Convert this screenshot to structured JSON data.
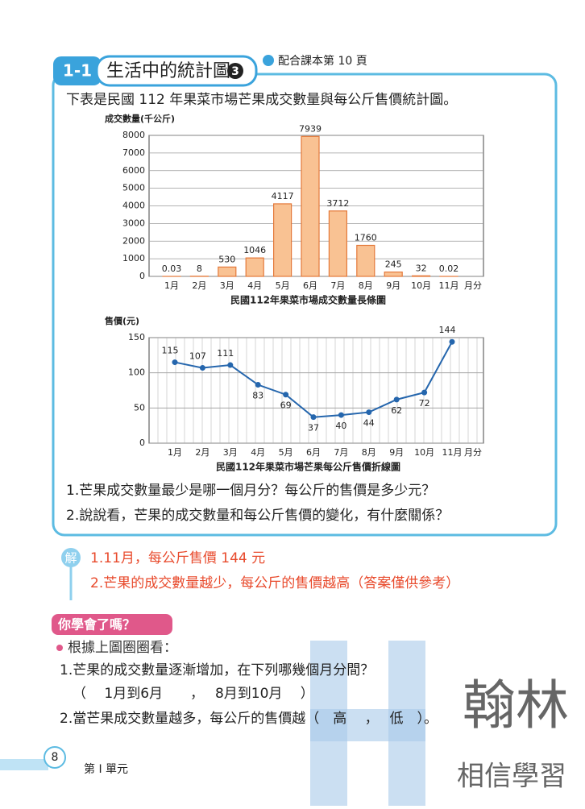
{
  "header": {
    "badge": "1-1",
    "title": "生活中的統計圖",
    "number": "3",
    "reference": "配合課本第 10 頁"
  },
  "intro": "下表是民國 112 年果菜市場芒果成交數量與每公斤售價統計圖。",
  "chart_data": [
    {
      "type": "bar",
      "title": "民國112年果菜市場成交數量長條圖",
      "y_label": "成交數量(千公斤)",
      "x_label": "月分",
      "categories": [
        "1月",
        "2月",
        "3月",
        "4月",
        "5月",
        "6月",
        "7月",
        "8月",
        "9月",
        "10月",
        "11月"
      ],
      "values": [
        0.03,
        8,
        530,
        1046,
        4117,
        7939,
        3712,
        1760,
        245,
        32,
        0.02
      ],
      "color": "#f9c293",
      "ylim": [
        0,
        8000
      ],
      "yticks": [
        0,
        1000,
        2000,
        3000,
        4000,
        5000,
        6000,
        7000,
        8000
      ],
      "grid": true
    },
    {
      "type": "line",
      "title": "民國112年果菜市場芒果每公斤售價折線圖",
      "y_label": "售價(元)",
      "x_label": "月分",
      "categories": [
        "1月",
        "2月",
        "3月",
        "4月",
        "5月",
        "6月",
        "7月",
        "8月",
        "9月",
        "10月",
        "11月"
      ],
      "values": [
        115,
        107,
        111,
        83,
        69,
        37,
        40,
        44,
        62,
        72,
        144
      ],
      "color": "#2566ad",
      "ylim": [
        0,
        150
      ],
      "yticks": [
        0,
        50,
        100,
        150
      ],
      "grid": true
    }
  ],
  "questions": [
    "1.芒果成交數量最少是哪一個月分？每公斤的售價是多少元？",
    "2.說說看，芒果的成交數量和每公斤售價的變化，有什麼關係？"
  ],
  "answer": {
    "label": "解",
    "lines": [
      "1.11月，每公斤售價 144 元",
      "2.芒果的成交數量越少，每公斤的售價越高（答案僅供參考）"
    ]
  },
  "practice": {
    "badge": "你學會了嗎？",
    "heading": "根據上圖圈圈看：",
    "questions": [
      "1.芒果的成交數量逐漸增加，在下列哪幾個月分間？",
      "（　 1月到6月　　，　 8月到10月　 ）",
      "2.當芒果成交數量越多，每公斤的售價越（　高　 ，　 低　）。"
    ]
  },
  "footer": {
    "page": "8",
    "unit": "第 I 單元"
  },
  "watermark": {
    "brand": "翰林",
    "slogan": "相信學習"
  }
}
